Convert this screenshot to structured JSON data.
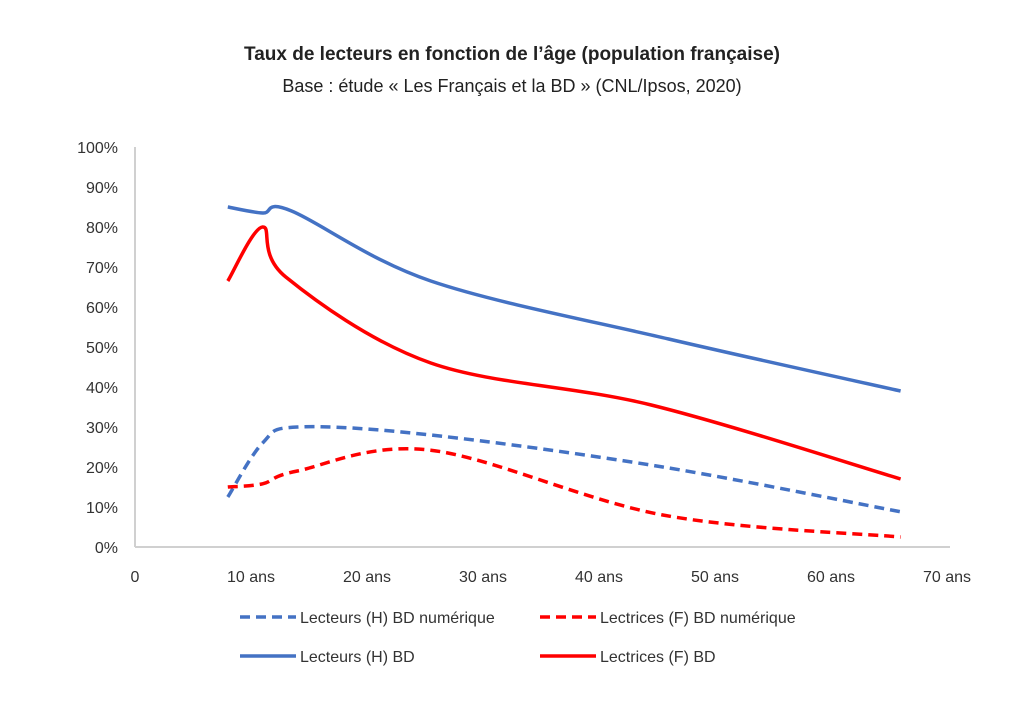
{
  "chart_data": {
    "type": "line",
    "title": "Taux de lecteurs en fonction de l’âge (population française)",
    "subtitle": "Base : étude « Les Français et la BD » (CNL/Ipsos, 2020)",
    "xlabel": "",
    "ylabel": "",
    "xlim": [
      0,
      70
    ],
    "ylim": [
      0,
      100
    ],
    "x_ticks": [
      {
        "value": 0,
        "label": "0"
      },
      {
        "value": 10,
        "label": "10 ans"
      },
      {
        "value": 20,
        "label": "20 ans"
      },
      {
        "value": 30,
        "label": "30 ans"
      },
      {
        "value": 40,
        "label": "40 ans"
      },
      {
        "value": 50,
        "label": "50 ans"
      },
      {
        "value": 60,
        "label": "60 ans"
      },
      {
        "value": 70,
        "label": "70 ans"
      }
    ],
    "y_ticks": [
      "0%",
      "10%",
      "20%",
      "30%",
      "40%",
      "50%",
      "60%",
      "70%",
      "80%",
      "90%",
      "100%"
    ],
    "grid": false,
    "legend_position": "bottom",
    "series": [
      {
        "name": "Lecteurs (H) BD numérique",
        "color": "#4472C4",
        "style": "dashed",
        "points": [
          [
            8,
            12.5
          ],
          [
            11,
            26
          ],
          [
            14,
            30
          ],
          [
            25.5,
            28
          ],
          [
            45.5,
            20
          ],
          [
            66,
            8.8
          ]
        ]
      },
      {
        "name": "Lectrices (F) BD numérique",
        "color": "#FF0000",
        "style": "dashed",
        "points": [
          [
            8,
            15
          ],
          [
            11,
            15.8
          ],
          [
            14,
            19
          ],
          [
            25.5,
            24.2
          ],
          [
            45.5,
            8
          ],
          [
            66,
            2.5
          ]
        ]
      },
      {
        "name": "Lecteurs (H) BD",
        "color": "#4472C4",
        "style": "solid",
        "points": [
          [
            8,
            85
          ],
          [
            11,
            83.5
          ],
          [
            13.5,
            84
          ],
          [
            25.5,
            66.5
          ],
          [
            46,
            52
          ],
          [
            66,
            39
          ]
        ]
      },
      {
        "name": "Lectrices (F) BD",
        "color": "#FF0000",
        "style": "solid",
        "points": [
          [
            8,
            66.5
          ],
          [
            11,
            80
          ],
          [
            13,
            67.5
          ],
          [
            25.5,
            46
          ],
          [
            44.5,
            35.5
          ],
          [
            66,
            17
          ]
        ]
      }
    ]
  }
}
